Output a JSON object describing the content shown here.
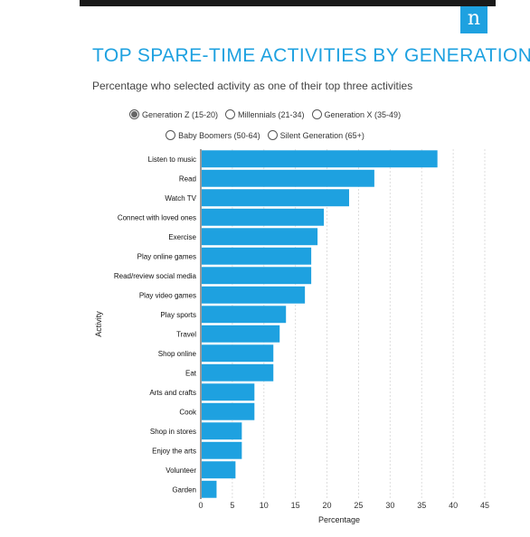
{
  "header": {
    "title": "TOP SPARE-TIME ACTIVITIES BY GENERATION",
    "subtitle": "Percentage who selected activity as one of their top three activities",
    "logo_letter": "n"
  },
  "legend": {
    "options": [
      {
        "label": "Generation Z (15-20)",
        "selected": true
      },
      {
        "label": "Millennials (21-34)",
        "selected": false
      },
      {
        "label": "Generation X (35-49)",
        "selected": false
      },
      {
        "label": "Baby Boomers (50-64)",
        "selected": false
      },
      {
        "label": "Silent Generation (65+)",
        "selected": false
      }
    ]
  },
  "colors": {
    "bar": "#1ea1e0",
    "accent": "#1ea1e0",
    "top_bar": "#1a1a1a"
  },
  "chart_data": {
    "type": "bar",
    "orientation": "horizontal",
    "xlabel": "Percentage",
    "ylabel": "Activity",
    "xlim": [
      0,
      45
    ],
    "xticks": [
      0,
      5,
      10,
      15,
      20,
      25,
      30,
      35,
      40,
      45
    ],
    "grid": true,
    "categories": [
      "Listen to music",
      "Read",
      "Watch TV",
      "Connect with loved ones",
      "Exercise",
      "Play online games",
      "Read/review social media",
      "Play video games",
      "Play sports",
      "Travel",
      "Shop online",
      "Eat",
      "Arts and crafts",
      "Cook",
      "Shop in stores",
      "Enjoy the arts",
      "Volunteer",
      "Garden"
    ],
    "series": [
      {
        "name": "Generation Z (15-20)",
        "values": [
          37.5,
          27.5,
          23.5,
          19.5,
          18.5,
          17.5,
          17.5,
          16.5,
          13.5,
          12.5,
          11.5,
          11.5,
          8.5,
          8.5,
          6.5,
          6.5,
          5.5,
          2.5
        ]
      }
    ]
  }
}
